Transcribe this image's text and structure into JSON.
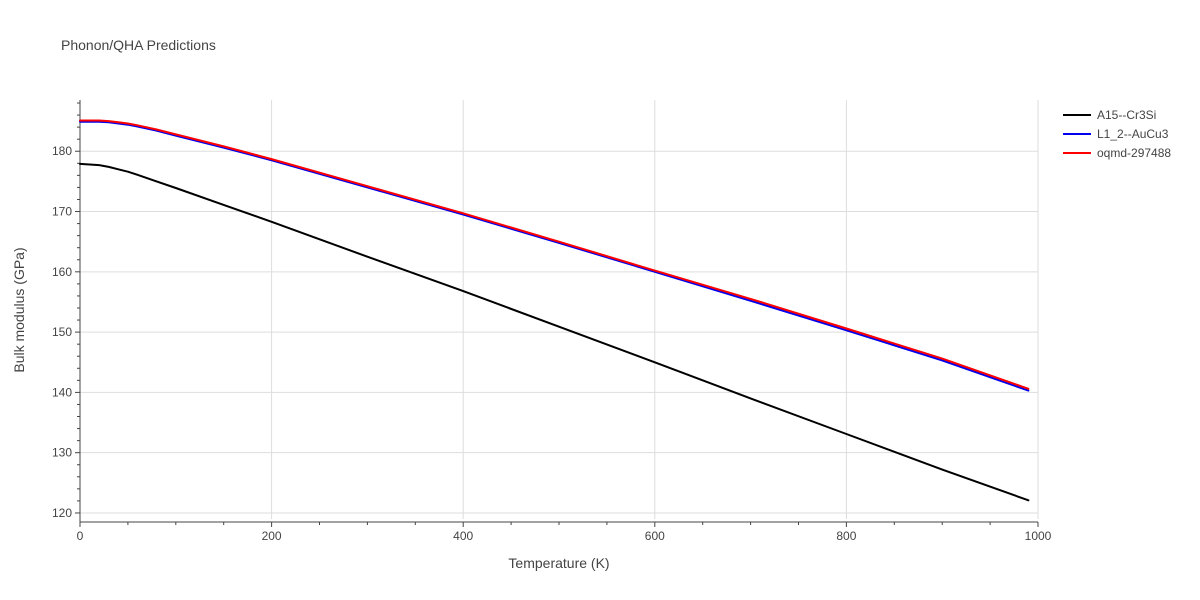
{
  "chart_data": {
    "type": "line",
    "title": "Phonon/QHA Predictions",
    "xlabel": "Temperature (K)",
    "ylabel": "Bulk modulus (GPa)",
    "xlim": [
      0,
      1000
    ],
    "ylim": [
      119,
      188.5
    ],
    "xticks": [
      0,
      200,
      400,
      600,
      800,
      1000
    ],
    "yticks": [
      120,
      130,
      140,
      150,
      160,
      170,
      180
    ],
    "grid": true,
    "legend_position": "top-right",
    "series": [
      {
        "name": "A15--Cr3Si",
        "color": "#000000",
        "x": [
          0,
          10,
          20,
          30,
          40,
          50,
          60,
          80,
          100,
          150,
          200,
          300,
          400,
          500,
          600,
          700,
          800,
          900,
          990
        ],
        "y": [
          177.9,
          177.8,
          177.7,
          177.4,
          177.0,
          176.6,
          176.1,
          175.0,
          173.9,
          171.1,
          168.3,
          162.5,
          156.8,
          150.9,
          145.0,
          139.0,
          133.1,
          127.2,
          122.1
        ]
      },
      {
        "name": "L1_2--AuCu3",
        "color": "#0000ee",
        "x": [
          0,
          10,
          20,
          30,
          40,
          50,
          60,
          80,
          100,
          150,
          200,
          300,
          400,
          500,
          600,
          700,
          800,
          900,
          990
        ],
        "y": [
          184.9,
          184.9,
          184.9,
          184.8,
          184.6,
          184.4,
          184.1,
          183.4,
          182.6,
          180.6,
          178.5,
          174.0,
          169.5,
          164.8,
          160.0,
          155.2,
          150.3,
          145.3,
          140.3
        ]
      },
      {
        "name": "oqmd-297488",
        "color": "#ff0000",
        "x": [
          0,
          10,
          20,
          30,
          40,
          50,
          60,
          80,
          100,
          150,
          200,
          300,
          400,
          500,
          600,
          700,
          800,
          900,
          990
        ],
        "y": [
          185.1,
          185.1,
          185.1,
          185.0,
          184.8,
          184.6,
          184.3,
          183.6,
          182.8,
          180.8,
          178.7,
          174.2,
          169.7,
          165.0,
          160.2,
          155.5,
          150.6,
          145.6,
          140.6
        ]
      }
    ]
  }
}
